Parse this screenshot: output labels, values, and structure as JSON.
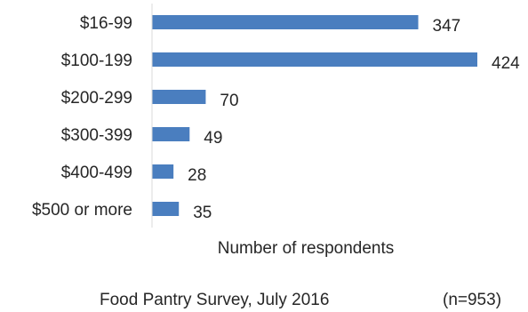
{
  "chart_data": {
    "type": "bar",
    "orientation": "horizontal",
    "categories": [
      "$16-99",
      "$100-199",
      "$200-299",
      "$300-399",
      "$400-499",
      "$500 or more"
    ],
    "values": [
      347,
      424,
      70,
      49,
      28,
      35
    ],
    "xlabel": "Number of respondents",
    "ylabel": "",
    "xlim": [
      0,
      424
    ],
    "data_labels": true,
    "grid": false,
    "legend": "none",
    "bar_color": "#4a7ebf"
  },
  "footer": {
    "source": "Food Pantry Survey, July 2016",
    "sample": "(n=953)"
  }
}
